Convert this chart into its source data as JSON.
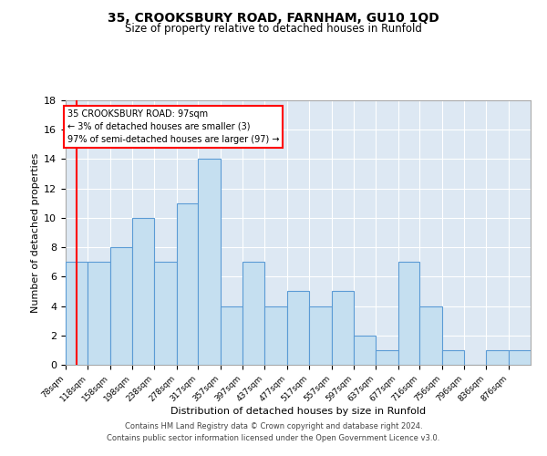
{
  "title": "35, CROOKSBURY ROAD, FARNHAM, GU10 1QD",
  "subtitle": "Size of property relative to detached houses in Runfold",
  "xlabel": "Distribution of detached houses by size in Runfold",
  "ylabel": "Number of detached properties",
  "bins": [
    "78sqm",
    "118sqm",
    "158sqm",
    "198sqm",
    "238sqm",
    "278sqm",
    "317sqm",
    "357sqm",
    "397sqm",
    "437sqm",
    "477sqm",
    "517sqm",
    "557sqm",
    "597sqm",
    "637sqm",
    "677sqm",
    "716sqm",
    "756sqm",
    "796sqm",
    "836sqm",
    "876sqm"
  ],
  "counts": [
    7,
    7,
    8,
    10,
    7,
    11,
    14,
    4,
    7,
    4,
    5,
    4,
    5,
    2,
    1,
    7,
    4,
    1,
    0,
    1,
    1
  ],
  "bar_color": "#c5dff0",
  "bar_edge_color": "#5b9bd5",
  "red_line_x": 97,
  "bin_edges_sqm": [
    78,
    118,
    158,
    198,
    238,
    278,
    317,
    357,
    397,
    437,
    477,
    517,
    557,
    597,
    637,
    677,
    716,
    756,
    796,
    836,
    876
  ],
  "bin_width": 40,
  "annotation_title": "35 CROOKSBURY ROAD: 97sqm",
  "annotation_line1": "← 3% of detached houses are smaller (3)",
  "annotation_line2": "97% of semi-detached houses are larger (97) →",
  "ylim": [
    0,
    18
  ],
  "yticks": [
    0,
    2,
    4,
    6,
    8,
    10,
    12,
    14,
    16,
    18
  ],
  "footnote1": "Contains HM Land Registry data © Crown copyright and database right 2024.",
  "footnote2": "Contains public sector information licensed under the Open Government Licence v3.0.",
  "background_color": "#ffffff"
}
